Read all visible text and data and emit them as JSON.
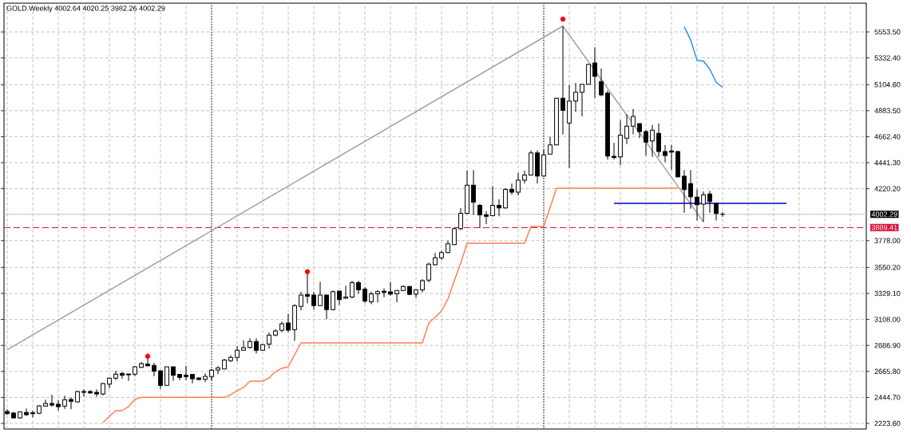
{
  "chart_data": {
    "type": "candlestick",
    "title": "GOLD.Weekly 4002.64 4020.25 3982.26 4002.29",
    "categories": [
      null,
      null,
      null,
      null,
      null,
      null,
      null,
      null,
      null,
      null,
      null,
      null,
      null,
      null,
      null,
      null,
      null,
      null,
      null,
      null,
      null,
      null,
      null,
      null,
      null,
      null,
      null,
      null,
      null,
      null,
      null,
      null,
      null,
      null,
      null,
      null,
      null,
      null,
      null,
      null,
      null,
      null,
      null,
      null,
      null,
      null,
      null,
      null,
      null,
      null,
      null,
      null,
      null,
      null,
      null,
      null,
      null,
      null,
      null,
      null,
      null,
      null,
      null,
      null,
      null,
      null,
      null,
      null,
      null,
      null,
      null,
      null,
      null,
      null,
      null,
      null,
      null,
      null,
      null,
      null,
      null,
      null,
      null,
      null,
      null,
      null,
      null,
      null,
      null,
      null,
      null,
      null,
      null,
      null,
      null,
      null,
      null,
      null,
      null,
      null,
      null,
      null,
      null,
      null,
      null,
      null,
      null,
      null,
      null,
      null,
      null,
      null,
      null,
      null,
      null,
      null,
      null,
      null,
      null,
      null,
      null,
      null,
      null,
      null,
      null,
      null,
      null,
      null,
      null,
      null,
      null,
      null,
      null,
      null,
      null
    ],
    "ohlc": [
      [
        2325,
        2344,
        2298,
        2307
      ],
      [
        2312,
        2321,
        2264,
        2271
      ],
      [
        2271,
        2325,
        2264,
        2321
      ],
      [
        2317,
        2351,
        2287,
        2298
      ],
      [
        2314,
        2332,
        2276,
        2307
      ],
      [
        2310,
        2380,
        2303,
        2373
      ],
      [
        2371,
        2425,
        2366,
        2393
      ],
      [
        2393,
        2468,
        2366,
        2380
      ],
      [
        2387,
        2422,
        2332,
        2366
      ],
      [
        2371,
        2459,
        2348,
        2425
      ],
      [
        2427,
        2445,
        2344,
        2412
      ],
      [
        2407,
        2502,
        2402,
        2495
      ],
      [
        2495,
        2513,
        2452,
        2488
      ],
      [
        2495,
        2506,
        2475,
        2483
      ],
      [
        2488,
        2513,
        2450,
        2475
      ],
      [
        2475,
        2570,
        2463,
        2563
      ],
      [
        2558,
        2615,
        2524,
        2608
      ],
      [
        2608,
        2671,
        2592,
        2642
      ],
      [
        2649,
        2660,
        2604,
        2633
      ],
      [
        2644,
        2644,
        2585,
        2637
      ],
      [
        2642,
        2712,
        2625,
        2705
      ],
      [
        2700,
        2746,
        2696,
        2732
      ],
      [
        2728,
        2784,
        2710,
        2714
      ],
      [
        2717,
        2739,
        2625,
        2667
      ],
      [
        2671,
        2671,
        2517,
        2547
      ],
      [
        2547,
        2705,
        2547,
        2705
      ],
      [
        2705,
        2705,
        2585,
        2633
      ],
      [
        2640,
        2640,
        2592,
        2615
      ],
      [
        2633,
        2712,
        2592,
        2622
      ],
      [
        2640,
        2640,
        2565,
        2604
      ],
      [
        2610,
        2615,
        2592,
        2597
      ],
      [
        2599,
        2649,
        2574,
        2624
      ],
      [
        2622,
        2687,
        2592,
        2676
      ],
      [
        2678,
        2710,
        2642,
        2696
      ],
      [
        2687,
        2773,
        2683,
        2762
      ],
      [
        2757,
        2804,
        2746,
        2784
      ],
      [
        2784,
        2881,
        2750,
        2845
      ],
      [
        2845,
        2931,
        2841,
        2868
      ],
      [
        2870,
        2947,
        2861,
        2920
      ],
      [
        2920,
        2947,
        2818,
        2845
      ],
      [
        2845,
        2899,
        2841,
        2893
      ],
      [
        2899,
        2999,
        2861,
        2974
      ],
      [
        2974,
        3025,
        2965,
        3010
      ],
      [
        3015,
        3090,
        2999,
        3071
      ],
      [
        3078,
        3156,
        2999,
        3017
      ],
      [
        3020,
        3237,
        2926,
        3226
      ],
      [
        3219,
        3343,
        3185,
        3315
      ],
      [
        3321,
        3502,
        3244,
        3306
      ],
      [
        3315,
        3343,
        3192,
        3226
      ],
      [
        3226,
        3428,
        3221,
        3315
      ],
      [
        3315,
        3315,
        3112,
        3192
      ],
      [
        3192,
        3354,
        3185,
        3345
      ],
      [
        3349,
        3349,
        3233,
        3277
      ],
      [
        3288,
        3394,
        3281,
        3299
      ],
      [
        3299,
        3437,
        3288,
        3421
      ],
      [
        3421,
        3437,
        3326,
        3360
      ],
      [
        3367,
        3383,
        3247,
        3265
      ],
      [
        3257,
        3345,
        3237,
        3326
      ],
      [
        3326,
        3358,
        3252,
        3345
      ],
      [
        3347,
        3372,
        3297,
        3338
      ],
      [
        3343,
        3428,
        3311,
        3324
      ],
      [
        3326,
        3354,
        3254,
        3354
      ],
      [
        3354,
        3399,
        3349,
        3388
      ],
      [
        3388,
        3394,
        3315,
        3321
      ],
      [
        3324,
        3365,
        3292,
        3360
      ],
      [
        3360,
        3451,
        3338,
        3437
      ],
      [
        3442,
        3591,
        3424,
        3578
      ],
      [
        3573,
        3673,
        3567,
        3632
      ],
      [
        3632,
        3694,
        3614,
        3677
      ],
      [
        3677,
        3779,
        3673,
        3752
      ],
      [
        3745,
        3892,
        3741,
        3880
      ],
      [
        3880,
        4054,
        3869,
        4011
      ],
      [
        4011,
        4377,
        4005,
        4249
      ],
      [
        4249,
        4377,
        3998,
        4106
      ],
      [
        4079,
        4090,
        3885,
        3998
      ],
      [
        3998,
        4027,
        3920,
        3986
      ],
      [
        3991,
        4242,
        3986,
        4079
      ],
      [
        4079,
        4129,
        3986,
        4056
      ],
      [
        4056,
        4224,
        4049,
        4214
      ],
      [
        4214,
        4264,
        4168,
        4191
      ],
      [
        4191,
        4354,
        4163,
        4293
      ],
      [
        4293,
        4373,
        4264,
        4337
      ],
      [
        4337,
        4547,
        4332,
        4524
      ],
      [
        4524,
        4547,
        4264,
        4327
      ],
      [
        4327,
        4551,
        4325,
        4508
      ],
      [
        4514,
        4661,
        4514,
        4593
      ],
      [
        4593,
        4993,
        4593,
        4989
      ],
      [
        4989,
        5603,
        4683,
        4887
      ],
      [
        4779,
        5101,
        4396,
        4966
      ],
      [
        4966,
        5120,
        4875,
        5040
      ],
      [
        5040,
        5108,
        4837,
        5108
      ],
      [
        5108,
        5278,
        5108,
        5278
      ],
      [
        5289,
        5423,
        4993,
        5176
      ],
      [
        5131,
        5241,
        5006,
        5018
      ],
      [
        5033,
        5056,
        4468,
        4497
      ],
      [
        4495,
        4610,
        4468,
        4486
      ],
      [
        4491,
        4803,
        4419,
        4676
      ],
      [
        4650,
        4853,
        4599,
        4751
      ],
      [
        4751,
        4898,
        4683,
        4835
      ],
      [
        4774,
        4774,
        4650,
        4706
      ],
      [
        4706,
        4717,
        4502,
        4616
      ],
      [
        4627,
        4762,
        4491,
        4717
      ],
      [
        4690,
        4774,
        4491,
        4536
      ],
      [
        4536,
        4593,
        4446,
        4502
      ],
      [
        4541,
        4593,
        4379,
        4532
      ],
      [
        4536,
        4541,
        4316,
        4321
      ],
      [
        4326,
        4379,
        4016,
        4213
      ],
      [
        4264,
        4379,
        4050,
        4152
      ],
      [
        4148,
        4214,
        3949,
        4084
      ],
      [
        4088,
        4197,
        3938,
        4168
      ],
      [
        4175,
        4202,
        4016,
        4111
      ],
      [
        4096,
        4096,
        3949,
        4009
      ],
      [
        4002.64,
        4020.25,
        3982.26,
        4002.29
      ],
      null,
      null,
      null,
      null,
      null,
      null,
      null,
      null,
      null,
      null,
      null,
      null,
      null,
      null,
      null,
      null,
      null,
      null,
      null,
      null,
      null,
      null
    ],
    "series": [
      {
        "type": "line",
        "color": "#ff7f50",
        "values": [
          null,
          null,
          null,
          null,
          null,
          null,
          null,
          null,
          null,
          null,
          null,
          null,
          null,
          null,
          null,
          2230,
          2285,
          2332,
          2332,
          2366,
          2429,
          2445,
          2445,
          2445,
          2445,
          2445,
          2445,
          2445,
          2445,
          2445,
          2445,
          2445,
          2445,
          2445,
          2445,
          2468,
          2502,
          2529,
          2583,
          2583,
          2583,
          2610,
          2664,
          2692,
          2705,
          2807,
          2909,
          2909,
          2909,
          2909,
          2909,
          2909,
          2909,
          2909,
          2909,
          2909,
          2909,
          2909,
          2909,
          2909,
          2909,
          2909,
          2909,
          2909,
          2909,
          2909,
          3078,
          3126,
          3180,
          3282,
          3437,
          3587,
          3757,
          3757,
          3757,
          3757,
          3757,
          3757,
          3757,
          3757,
          3757,
          3757,
          3899,
          3899,
          3899,
          4061,
          4225,
          4225,
          4225,
          4225,
          4225,
          4225,
          4225,
          4225,
          4225,
          4225,
          4225,
          4225,
          4225,
          4225,
          4225,
          4225,
          4225,
          4225,
          4225,
          4225,
          null,
          null,
          null,
          null,
          null,
          null,
          null,
          null,
          null,
          null,
          null,
          null,
          null,
          null,
          null,
          null,
          null,
          null,
          null,
          null,
          null,
          null,
          null,
          null,
          null,
          null,
          null,
          null,
          null
        ]
      },
      {
        "type": "line",
        "color": "#1e90ff",
        "values": [
          null,
          null,
          null,
          null,
          null,
          null,
          null,
          null,
          null,
          null,
          null,
          null,
          null,
          null,
          null,
          null,
          null,
          null,
          null,
          null,
          null,
          null,
          null,
          null,
          null,
          null,
          null,
          null,
          null,
          null,
          null,
          null,
          null,
          null,
          null,
          null,
          null,
          null,
          null,
          null,
          null,
          null,
          null,
          null,
          null,
          null,
          null,
          null,
          null,
          null,
          null,
          null,
          null,
          null,
          null,
          null,
          null,
          null,
          null,
          null,
          null,
          null,
          null,
          null,
          null,
          null,
          null,
          null,
          null,
          null,
          null,
          null,
          null,
          null,
          null,
          null,
          null,
          null,
          null,
          null,
          null,
          null,
          null,
          null,
          null,
          null,
          null,
          null,
          null,
          null,
          null,
          null,
          null,
          null,
          null,
          null,
          null,
          null,
          null,
          null,
          null,
          null,
          null,
          null,
          null,
          null,
          5598,
          5485,
          5312,
          5306,
          5237,
          5125,
          5084,
          null,
          null,
          null,
          null,
          null,
          null,
          null,
          null,
          null,
          null,
          null,
          null,
          null,
          null,
          null,
          null,
          null,
          null,
          null,
          null,
          null,
          null
        ]
      },
      {
        "type": "line",
        "color": "#a0a0a0",
        "values": [
          2850,
          null,
          null,
          null,
          null,
          null,
          null,
          null,
          null,
          null,
          null,
          null,
          null,
          null,
          null,
          null,
          null,
          null,
          null,
          null,
          null,
          null,
          null,
          null,
          null,
          null,
          null,
          null,
          null,
          null,
          null,
          null,
          null,
          null,
          null,
          null,
          null,
          null,
          null,
          null,
          null,
          null,
          null,
          null,
          null,
          null,
          null,
          null,
          null,
          null,
          null,
          null,
          null,
          null,
          null,
          null,
          null,
          null,
          null,
          null,
          null,
          null,
          null,
          null,
          null,
          null,
          null,
          null,
          null,
          null,
          null,
          null,
          null,
          null,
          null,
          null,
          null,
          null,
          null,
          null,
          null,
          null,
          null,
          null,
          null,
          null,
          null,
          5603,
          null,
          null,
          null,
          null,
          null,
          null,
          null,
          null,
          null,
          null,
          null,
          null,
          null,
          null,
          null,
          null,
          null,
          null,
          null,
          null,
          null,
          3938,
          null,
          null,
          null,
          null,
          null,
          null,
          null,
          null,
          null,
          null,
          null,
          null,
          null,
          null,
          null,
          null,
          null,
          null,
          null,
          null,
          null,
          null,
          null,
          null,
          null
        ]
      },
      {
        "type": "line",
        "color": "#0000c8",
        "values": [
          null,
          null,
          null,
          null,
          null,
          null,
          null,
          null,
          null,
          null,
          null,
          null,
          null,
          null,
          null,
          null,
          null,
          null,
          null,
          null,
          null,
          null,
          null,
          null,
          null,
          null,
          null,
          null,
          null,
          null,
          null,
          null,
          null,
          null,
          null,
          null,
          null,
          null,
          null,
          null,
          null,
          null,
          null,
          null,
          null,
          null,
          null,
          null,
          null,
          null,
          null,
          null,
          null,
          null,
          null,
          null,
          null,
          null,
          null,
          null,
          null,
          null,
          null,
          null,
          null,
          null,
          null,
          null,
          null,
          null,
          null,
          null,
          null,
          null,
          null,
          null,
          null,
          null,
          null,
          null,
          null,
          null,
          null,
          null,
          null,
          null,
          null,
          null,
          null,
          null,
          null,
          null,
          null,
          null,
          null,
          4095,
          4095,
          4095,
          4095,
          4095,
          4095,
          4095,
          4095,
          4095,
          4095,
          4095,
          4095,
          4095,
          4095,
          4095,
          4095,
          4095,
          4095,
          4095,
          4095,
          4095,
          4095,
          4095,
          4095,
          4095,
          4095,
          4095,
          4095,
          null,
          null,
          null,
          null,
          null,
          null,
          null,
          null,
          null,
          null,
          null,
          null
        ]
      },
      {
        "type": "scatter",
        "color": "#ff0000",
        "values": [
          null,
          null,
          null,
          null,
          null,
          null,
          null,
          null,
          null,
          null,
          null,
          null,
          null,
          null,
          null,
          null,
          null,
          null,
          null,
          null,
          null,
          null,
          2795,
          null,
          null,
          null,
          null,
          null,
          null,
          null,
          null,
          null,
          null,
          null,
          null,
          null,
          null,
          null,
          null,
          null,
          null,
          null,
          null,
          null,
          null,
          null,
          null,
          3514,
          null,
          null,
          null,
          null,
          null,
          null,
          null,
          null,
          null,
          null,
          null,
          null,
          null,
          null,
          null,
          null,
          null,
          null,
          null,
          null,
          null,
          null,
          null,
          null,
          null,
          null,
          null,
          null,
          null,
          null,
          null,
          null,
          null,
          null,
          null,
          null,
          null,
          null,
          null,
          5662,
          null,
          null,
          null,
          null,
          null,
          null,
          null,
          null,
          null,
          null,
          null,
          null,
          null,
          null,
          null,
          null,
          null,
          null,
          null,
          null,
          null,
          null,
          null,
          null,
          null,
          null,
          null,
          null,
          null,
          null,
          null,
          null,
          null,
          null,
          null,
          null,
          null,
          null,
          null,
          null,
          null,
          null,
          null,
          null,
          null,
          null,
          null
        ]
      }
    ],
    "ylim": [
      2176,
      5798
    ],
    "yticks": [
      {
        "value": 2223.6,
        "label": "2223.60"
      },
      {
        "value": 2444.7,
        "label": "2444.70"
      },
      {
        "value": 2665.8,
        "label": "2665.80"
      },
      {
        "value": 2886.9,
        "label": "2886.90"
      },
      {
        "value": 3108,
        "label": "3108.00"
      },
      {
        "value": 3329.1,
        "label": "3329.10"
      },
      {
        "value": 3550.2,
        "label": "3550.20"
      },
      {
        "value": 3778,
        "label": "3778.00"
      },
      {
        "value": 4220.2,
        "label": "4220.20"
      },
      {
        "value": 4441.3,
        "label": "4441.30"
      },
      {
        "value": 4662.4,
        "label": "4662.40"
      },
      {
        "value": 4883.5,
        "label": "4883.50"
      },
      {
        "value": 5104.6,
        "label": "5104.60"
      },
      {
        "value": 5332.4,
        "label": "5332.40"
      },
      {
        "value": 5553.5,
        "label": "5553.50"
      }
    ],
    "ref_lines": [
      {
        "axis": "y",
        "value": 4002.29,
        "label": "4002.29",
        "color": "#c0c0c0"
      },
      {
        "axis": "y",
        "value": 3889.41,
        "label": "3889.41",
        "color": "#dc143c",
        "line_style": "dashed"
      }
    ],
    "grid": true
  }
}
